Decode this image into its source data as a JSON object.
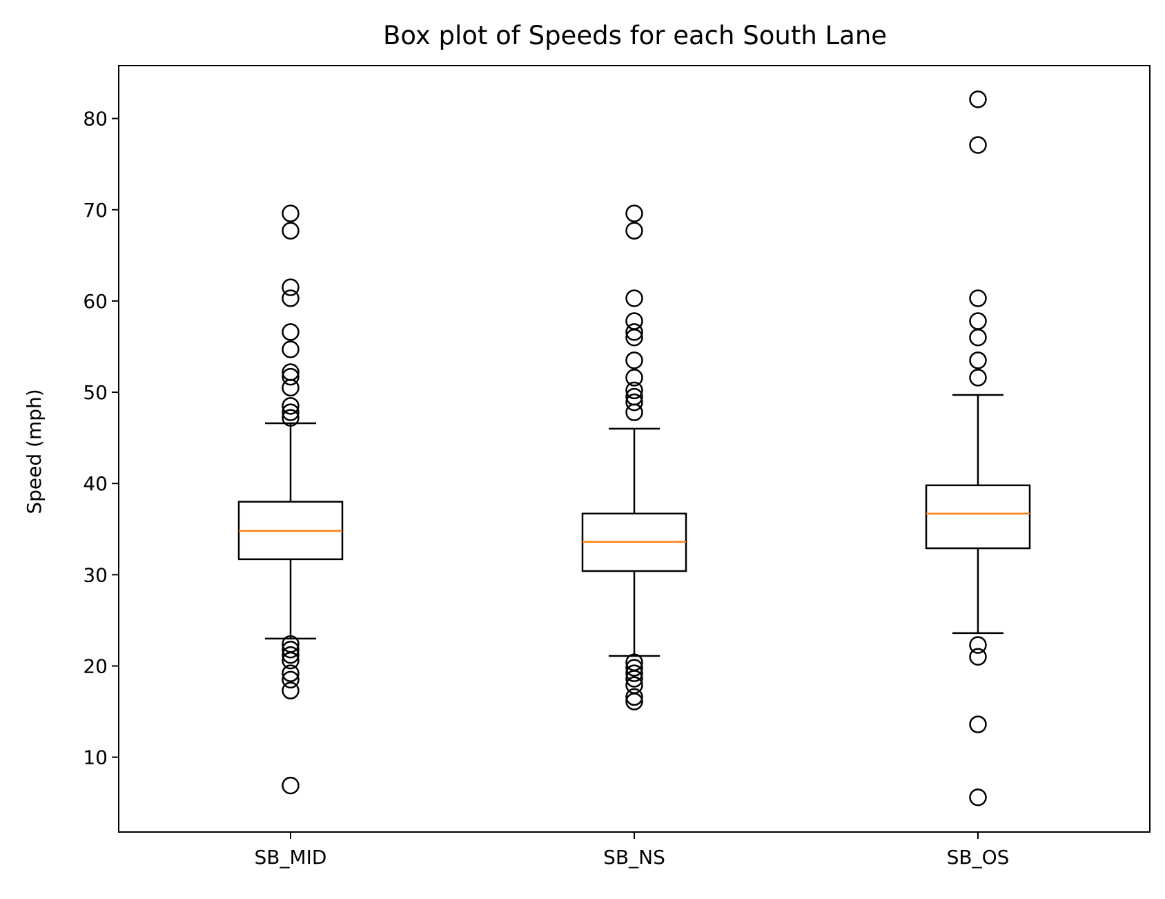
{
  "chart_data": {
    "type": "box",
    "title": "Box plot of Speeds for each South Lane",
    "xlabel": "",
    "ylabel": "Speed (mph)",
    "ylim": [
      1.8,
      85.8
    ],
    "yticks": [
      10,
      20,
      30,
      40,
      50,
      60,
      70,
      80
    ],
    "grid": false,
    "categories": [
      "SB_MID",
      "SB_NS",
      "SB_OS"
    ],
    "boxes": [
      {
        "label": "SB_MID",
        "whisker_low": 23.0,
        "q1": 31.7,
        "median": 34.8,
        "q3": 38.0,
        "whisker_high": 46.6,
        "outliers": [
          69.6,
          67.7,
          61.5,
          60.3,
          56.6,
          54.7,
          52.2,
          51.7,
          50.5,
          48.5,
          47.8,
          47.2,
          22.4,
          21.8,
          21.2,
          20.6,
          19.2,
          18.5,
          17.3,
          6.9
        ]
      },
      {
        "label": "SB_NS",
        "whisker_low": 21.1,
        "q1": 30.4,
        "median": 33.6,
        "q3": 36.7,
        "whisker_high": 46.0,
        "outliers": [
          69.6,
          67.7,
          60.3,
          57.8,
          56.6,
          56.0,
          53.5,
          51.6,
          50.2,
          49.5,
          48.9,
          47.8,
          20.4,
          19.8,
          19.2,
          18.6,
          17.9,
          16.6,
          16.1
        ]
      },
      {
        "label": "SB_OS",
        "whisker_low": 23.6,
        "q1": 32.9,
        "median": 36.7,
        "q3": 39.8,
        "whisker_high": 49.7,
        "outliers": [
          82.1,
          77.1,
          60.3,
          57.8,
          56.0,
          53.5,
          51.6,
          22.3,
          21.0,
          13.6,
          5.6
        ]
      }
    ],
    "colors": {
      "median": "#ff7f0e",
      "box": "#000000"
    }
  }
}
